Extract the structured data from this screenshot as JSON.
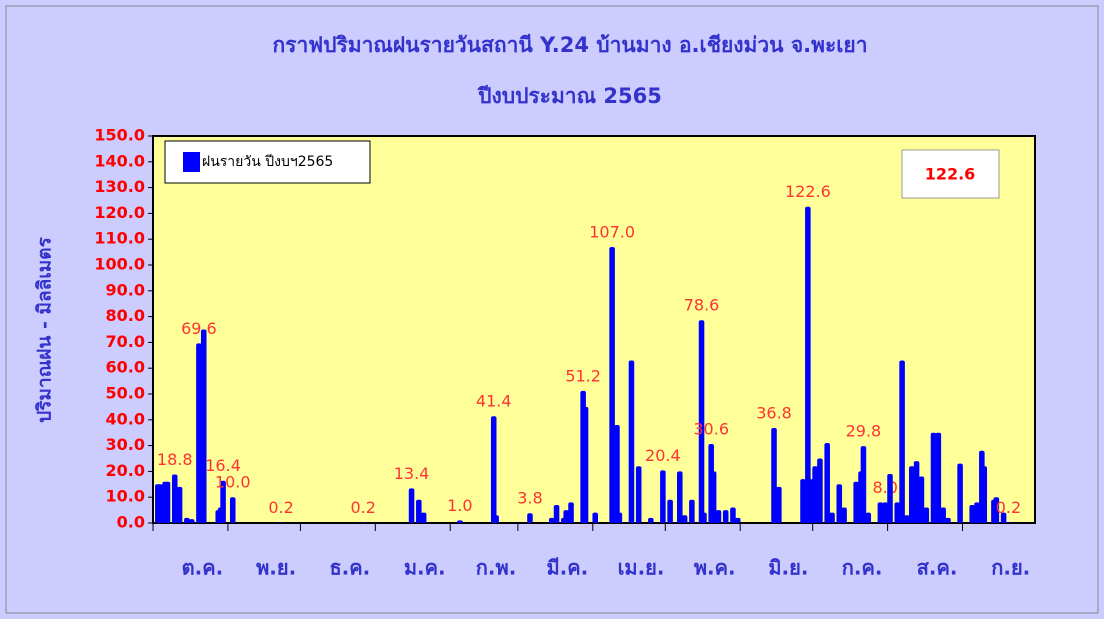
{
  "chart_data": {
    "type": "bar",
    "title": "กราฟปริมาณฝนรายวันสถานี Y.24 บ้านมาง อ.เชียงม่วน จ.พะเยา",
    "subtitle": "ปีงบประมาณ 2565",
    "y_label": "ปริมาณฝน - มิลลิเมตร",
    "annotation": "122.6",
    "series": [
      {
        "name": "ฝนรายวัน ปีงบฯ2565",
        "color": "#0000ff",
        "x": [
          2,
          3,
          5,
          6,
          9,
          11,
          14,
          16,
          19,
          21,
          27,
          28,
          29,
          33,
          53,
          87,
          107,
          110,
          112,
          127,
          141,
          142,
          156,
          165,
          167,
          170,
          171,
          173,
          178,
          179,
          183,
          190,
          192,
          193,
          198,
          201,
          206,
          211,
          214,
          218,
          220,
          223,
          227,
          228,
          231,
          232,
          234,
          237,
          240,
          242,
          257,
          259,
          269,
          271,
          273,
          274,
          276,
          279,
          281,
          284,
          286,
          291,
          293,
          294,
          296,
          301,
          303,
          305,
          308,
          310,
          312,
          314,
          316,
          318,
          320,
          323,
          325,
          327,
          329,
          334,
          339,
          341,
          343,
          344,
          348,
          349,
          352,
          354
        ],
        "values": [
          15,
          15,
          16,
          16,
          18.8,
          14,
          2,
          1.5,
          69.6,
          75,
          5,
          6,
          16.4,
          10.0,
          0.2,
          0.2,
          13.4,
          9,
          4,
          1.0,
          41.4,
          3,
          3.8,
          2,
          7,
          2,
          5,
          8,
          51.2,
          45,
          4,
          107.0,
          38,
          4,
          63,
          22,
          2,
          20.4,
          9,
          20,
          3,
          9,
          78.6,
          4,
          30.6,
          20,
          5,
          5,
          6,
          2,
          36.8,
          14,
          17,
          122.6,
          17,
          22,
          25,
          31,
          4,
          15,
          6,
          16,
          20,
          29.8,
          4,
          8,
          8.0,
          19,
          8,
          63,
          3,
          22,
          24,
          18,
          6,
          35,
          35,
          6,
          2,
          23,
          7,
          8,
          28,
          22,
          9,
          10,
          4,
          0.2
        ],
        "value_labels": [
          null,
          null,
          null,
          null,
          "18.8",
          null,
          null,
          null,
          "69.6",
          null,
          null,
          null,
          "16.4",
          "10.0",
          "0.2",
          "0.2",
          "13.4",
          null,
          null,
          "1.0",
          "41.4",
          null,
          "3.8",
          null,
          null,
          null,
          null,
          null,
          "51.2",
          null,
          null,
          "107.0",
          null,
          null,
          null,
          null,
          null,
          "20.4",
          null,
          null,
          null,
          null,
          "78.6",
          null,
          "30.6",
          null,
          null,
          null,
          null,
          null,
          "36.8",
          null,
          null,
          "122.6",
          null,
          null,
          null,
          null,
          null,
          null,
          null,
          null,
          null,
          "29.8",
          null,
          null,
          "8.0",
          null,
          null,
          null,
          null,
          null,
          null,
          null,
          null,
          null,
          null,
          null,
          null,
          null,
          null,
          null,
          null,
          null,
          null,
          null,
          null,
          "0.2"
        ]
      }
    ],
    "xlim": [
      0,
      365
    ],
    "xticks": [
      {
        "value": 0,
        "label": "ต.ค."
      },
      {
        "value": 31,
        "label": "พ.ย."
      },
      {
        "value": 61,
        "label": "ธ.ค."
      },
      {
        "value": 92,
        "label": "ม.ค."
      },
      {
        "value": 123,
        "label": "ก.พ."
      },
      {
        "value": 151,
        "label": "มี.ค."
      },
      {
        "value": 182,
        "label": "เม.ย."
      },
      {
        "value": 212,
        "label": "พ.ค."
      },
      {
        "value": 243,
        "label": "มิ.ย."
      },
      {
        "value": 273,
        "label": "ก.ค."
      },
      {
        "value": 304,
        "label": "ส.ค."
      },
      {
        "value": 335,
        "label": "ก.ย."
      }
    ],
    "ylim": [
      0,
      150
    ],
    "yticks": [
      {
        "value": 0,
        "label": "0.0"
      },
      {
        "value": 10,
        "label": "10.0"
      },
      {
        "value": 20,
        "label": "20.0"
      },
      {
        "value": 30,
        "label": "30.0"
      },
      {
        "value": 40,
        "label": "40.0"
      },
      {
        "value": 50,
        "label": "50.0"
      },
      {
        "value": 60,
        "label": "60.0"
      },
      {
        "value": 70,
        "label": "70.0"
      },
      {
        "value": 80,
        "label": "80.0"
      },
      {
        "value": 90,
        "label": "90.0"
      },
      {
        "value": 100,
        "label": "100.0"
      },
      {
        "value": 110,
        "label": "110.0"
      },
      {
        "value": 120,
        "label": "120.0"
      },
      {
        "value": 130,
        "label": "130.0"
      },
      {
        "value": 140,
        "label": "140.0"
      },
      {
        "value": 150,
        "label": "150.0"
      }
    ]
  }
}
